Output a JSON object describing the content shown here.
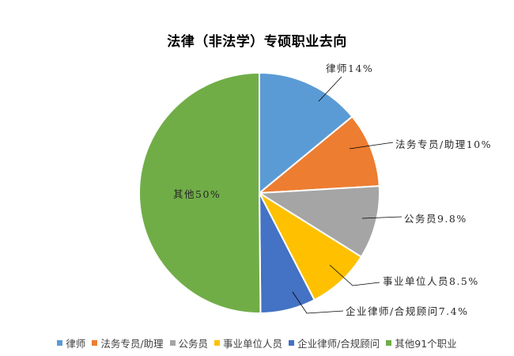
{
  "chart_data": {
    "type": "pie",
    "title": "法律（非法学）专硕职业去向",
    "categories": [
      "律师",
      "法务专员/助理",
      "公务员",
      "事业单位人员",
      "企业律师/合规顾问",
      "其他91个职业"
    ],
    "values": [
      14,
      10,
      9.8,
      8.5,
      7.4,
      50
    ],
    "unit": "%",
    "colors": [
      "#5B9BD5",
      "#ED7D31",
      "#A5A5A5",
      "#FFC000",
      "#4472C4",
      "#70AD47"
    ],
    "data_labels": [
      "律师14%",
      "法务专员/助理10%",
      "公务员9.8%",
      "事业单位人员8.5%",
      "企业律师/合规顾问7.4%",
      "其他50%"
    ],
    "legend_position": "bottom",
    "start_angle": "12 o'clock, clockwise"
  },
  "legend": {
    "items": [
      {
        "label": "律师",
        "color": "#5B9BD5"
      },
      {
        "label": "法务专员/助理",
        "color": "#ED7D31"
      },
      {
        "label": "公务员",
        "color": "#A5A5A5"
      },
      {
        "label": "事业单位人员",
        "color": "#FFC000"
      },
      {
        "label": "企业律师/合规顾问",
        "color": "#4472C4"
      },
      {
        "label": "其他91个职业",
        "color": "#70AD47"
      }
    ]
  },
  "labels": {
    "lawyer": "律师14%",
    "legal_specialist": "法务专员/助理10%",
    "civil_servant": "公务员9.8%",
    "public_institution": "事业单位人员8.5%",
    "corporate_counsel": "企业律师/合规顾问7.4%",
    "other": "其他50%"
  }
}
